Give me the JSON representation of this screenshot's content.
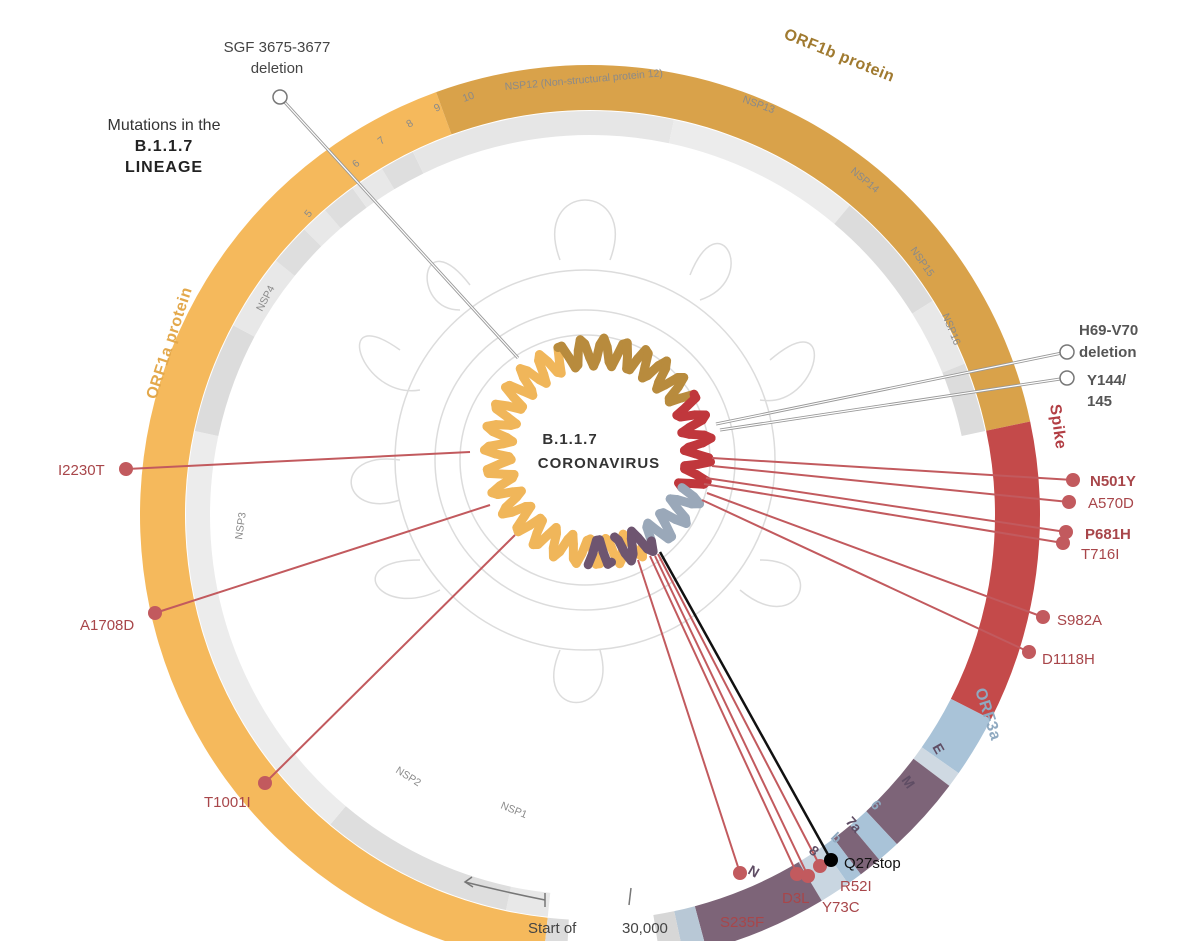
{
  "title": {
    "line1": "Mutations in the",
    "line2": "B.1.1.7",
    "line3": "LINEAGE"
  },
  "center": {
    "line1": "B.1.1.7",
    "line2": "CORONAVIRUS"
  },
  "proteins": {
    "orf1a": "ORF1a protein",
    "orf1b": "ORF1b protein",
    "spike": "Spike",
    "orf3a": "ORF3a",
    "e": "E",
    "m": "M",
    "p6": "6",
    "p7a": "7a",
    "p7b": "b",
    "p8": "8",
    "n": "N"
  },
  "segments": {
    "nsp1": "NSP1",
    "nsp2": "NSP2",
    "nsp3": "NSP3",
    "nsp4": "NSP4",
    "s5": "5",
    "s6": "6",
    "s7": "7",
    "s8": "8",
    "s9": "9",
    "s10": "10",
    "nsp12": "NSP12 (Non-structural protein 12)",
    "nsp13": "NSP13",
    "nsp14": "NSP14",
    "nsp15": "NSP15",
    "nsp16": "NSP16"
  },
  "deletions": {
    "sgf_line1": "SGF 3675-3677",
    "sgf_line2": "deletion",
    "h69_line1": "H69-V70",
    "h69_line2": "deletion",
    "y144_line1": "Y144/",
    "y144_line2": "145"
  },
  "mutations": {
    "i2230t": "I2230T",
    "a1708d": "A1708D",
    "t1001i": "T1001I",
    "n501y": "N501Y",
    "a570d": "A570D",
    "p681h": "P681H",
    "t716i": "T716I",
    "s982a": "S982A",
    "d1118h": "D1118H",
    "q27stop": "Q27stop",
    "r52i": "R52I",
    "y73c": "Y73C",
    "d3l": "D3L",
    "s235f": "S235F"
  },
  "axis": {
    "start": "Start of",
    "end": "30,000"
  },
  "colors": {
    "orf1a": "#f5b95c",
    "orf1b": "#d9a24a",
    "spike": "#c44a4a",
    "orf3a": "#a9c3d8",
    "mprotein": "#7d6478",
    "mutation": "#c25a5e",
    "deletion": "#ffffff"
  }
}
